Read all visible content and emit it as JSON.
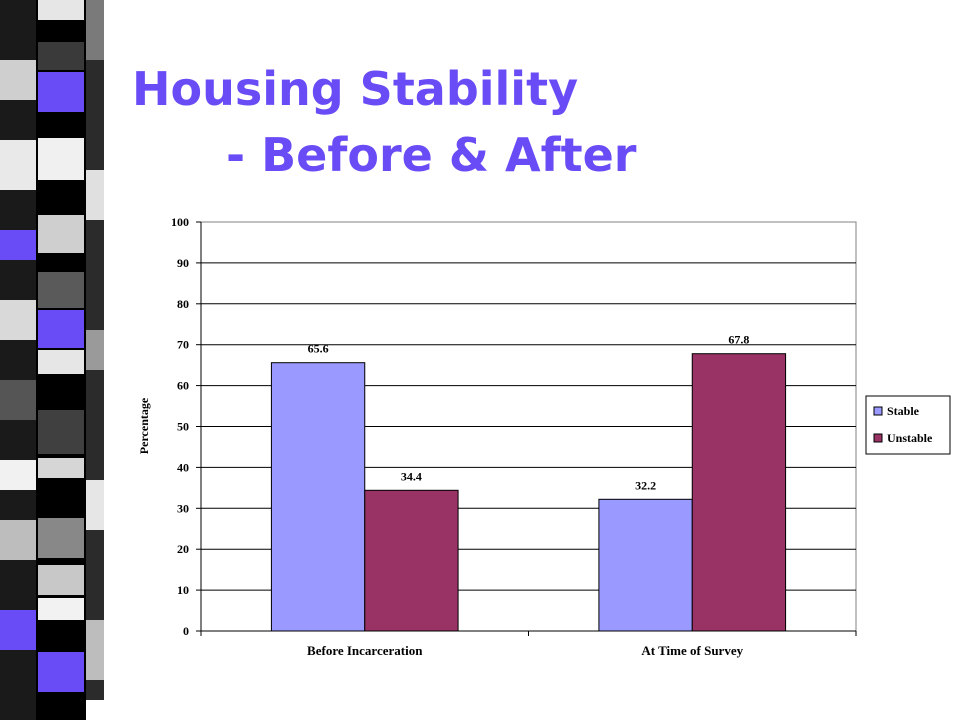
{
  "slide": {
    "title_line1": "Housing Stability",
    "title_line2": "- Before & After"
  },
  "colors": {
    "title": "#6a4cf6",
    "stable": "#9999ff",
    "unstable": "#993366"
  },
  "chart_data": {
    "type": "bar",
    "title": "",
    "xlabel": "",
    "ylabel": "Percentage",
    "categories": [
      "Before Incarceration",
      "At Time of Survey"
    ],
    "series": [
      {
        "name": "Stable",
        "color": "#9999ff",
        "values": [
          65.6,
          32.2
        ]
      },
      {
        "name": "Unstable",
        "color": "#993366",
        "values": [
          34.4,
          67.8
        ]
      }
    ],
    "ylim": [
      0,
      100
    ],
    "yticks": [
      0,
      10,
      20,
      30,
      40,
      50,
      60,
      70,
      80,
      90,
      100
    ],
    "grid": true,
    "legend_position": "right"
  }
}
